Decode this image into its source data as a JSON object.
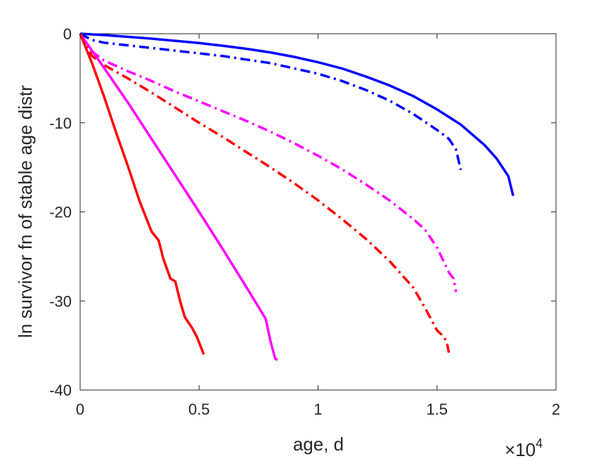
{
  "chart_data": {
    "type": "line",
    "xlabel": "age, d",
    "ylabel": "ln survivor fn of stable age distr",
    "x_multiplier": "×10",
    "x_multiplier_exponent": "4",
    "xlim": [
      0,
      2
    ],
    "ylim": [
      -40,
      0
    ],
    "xticks": [
      "0",
      "0.5",
      "1",
      "1.5",
      "2"
    ],
    "yticks": [
      "0",
      "-10",
      "-20",
      "-30",
      "-40"
    ],
    "grid": false,
    "series": [
      {
        "color": "#0000ff",
        "style": "solid",
        "x": [
          0,
          0.1,
          0.2,
          0.3,
          0.4,
          0.5,
          0.6,
          0.7,
          0.8,
          0.9,
          1.0,
          1.1,
          1.2,
          1.3,
          1.4,
          1.5,
          1.6,
          1.7,
          1.75,
          1.8,
          1.82
        ],
        "y": [
          0,
          -0.15,
          -0.35,
          -0.55,
          -0.8,
          -1.05,
          -1.35,
          -1.7,
          -2.1,
          -2.6,
          -3.2,
          -3.9,
          -4.8,
          -5.8,
          -7.0,
          -8.5,
          -10.2,
          -12.5,
          -14.0,
          -16.0,
          -18.2
        ]
      },
      {
        "color": "#0000ff",
        "style": "dashdot",
        "x": [
          0,
          0.05,
          0.1,
          0.2,
          0.3,
          0.4,
          0.5,
          0.6,
          0.7,
          0.8,
          0.9,
          1.0,
          1.1,
          1.2,
          1.3,
          1.4,
          1.5,
          1.55,
          1.58,
          1.6
        ],
        "y": [
          0,
          -0.7,
          -1.0,
          -1.3,
          -1.6,
          -1.9,
          -2.2,
          -2.5,
          -2.9,
          -3.3,
          -3.9,
          -4.5,
          -5.3,
          -6.3,
          -7.5,
          -9.0,
          -10.8,
          -11.8,
          -13.0,
          -15.3
        ]
      },
      {
        "color": "#ff00ff",
        "style": "dashdot",
        "x": [
          0,
          0.05,
          0.1,
          0.2,
          0.3,
          0.4,
          0.5,
          0.6,
          0.7,
          0.8,
          0.9,
          1.0,
          1.1,
          1.2,
          1.3,
          1.4,
          1.45,
          1.5,
          1.55,
          1.57,
          1.58
        ],
        "y": [
          0,
          -2.0,
          -3.0,
          -4.2,
          -5.3,
          -6.5,
          -7.6,
          -8.7,
          -9.8,
          -11.0,
          -12.3,
          -13.7,
          -15.2,
          -16.9,
          -18.7,
          -20.8,
          -22.0,
          -24.0,
          -26.8,
          -27.5,
          -29.0
        ]
      },
      {
        "color": "#ff0000",
        "style": "dashdot",
        "x": [
          0,
          0.05,
          0.1,
          0.2,
          0.3,
          0.4,
          0.5,
          0.6,
          0.7,
          0.8,
          0.9,
          1.0,
          1.1,
          1.2,
          1.3,
          1.4,
          1.45,
          1.5,
          1.52,
          1.54,
          1.55
        ],
        "y": [
          0,
          -2.5,
          -3.5,
          -5.0,
          -6.6,
          -8.3,
          -10.0,
          -11.6,
          -13.3,
          -15.0,
          -16.8,
          -18.7,
          -20.8,
          -23.0,
          -25.5,
          -28.5,
          -30.8,
          -33.3,
          -33.8,
          -34.5,
          -35.8
        ]
      },
      {
        "color": "#ff00ff",
        "style": "solid",
        "x": [
          0,
          0.1,
          0.2,
          0.3,
          0.4,
          0.5,
          0.6,
          0.7,
          0.78,
          0.8,
          0.82,
          0.83
        ],
        "y": [
          0,
          -3.8,
          -7.7,
          -11.8,
          -15.9,
          -20.0,
          -24.2,
          -28.5,
          -32.0,
          -34.5,
          -36.5,
          -36.6
        ]
      },
      {
        "color": "#ff0000",
        "style": "solid",
        "x": [
          0,
          0.05,
          0.1,
          0.15,
          0.2,
          0.25,
          0.3,
          0.33,
          0.35,
          0.38,
          0.4,
          0.42,
          0.44,
          0.47,
          0.49,
          0.52
        ],
        "y": [
          0,
          -3.3,
          -7.0,
          -11.0,
          -14.8,
          -18.8,
          -22.2,
          -23.2,
          -25.3,
          -27.5,
          -27.8,
          -30.0,
          -31.8,
          -33.0,
          -34.0,
          -36.0
        ]
      }
    ]
  }
}
